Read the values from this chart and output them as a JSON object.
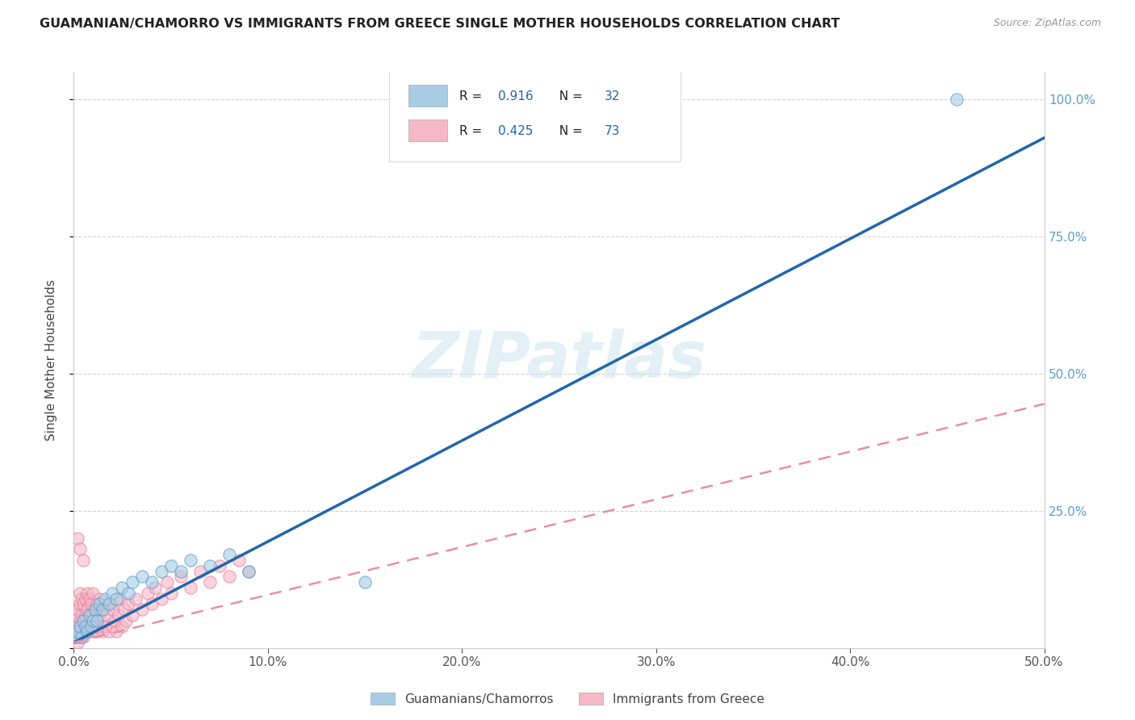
{
  "title": "GUAMANIAN/CHAMORRO VS IMMIGRANTS FROM GREECE SINGLE MOTHER HOUSEHOLDS CORRELATION CHART",
  "source": "Source: ZipAtlas.com",
  "ylabel": "Single Mother Households",
  "xlim": [
    0,
    0.5
  ],
  "ylim": [
    0,
    1.05
  ],
  "xticks": [
    0.0,
    0.1,
    0.2,
    0.3,
    0.4,
    0.5
  ],
  "xtick_labels": [
    "0.0%",
    "10.0%",
    "20.0%",
    "30.0%",
    "40.0%",
    "50.0%"
  ],
  "yticks": [
    0.0,
    0.25,
    0.5,
    0.75,
    1.0
  ],
  "ytick_labels": [
    "",
    "25.0%",
    "50.0%",
    "75.0%",
    "100.0%"
  ],
  "r1": "0.916",
  "n1": "32",
  "r2": "0.425",
  "n2": "73",
  "watermark": "ZIPatlas",
  "blue_color": "#a8cce4",
  "blue_edge_color": "#5b9ec9",
  "pink_color": "#f5b8c8",
  "pink_edge_color": "#e87ea0",
  "blue_line_color": "#2166ac",
  "pink_line_color": "#e8909e",
  "right_axis_color": "#5b9ec9",
  "background_color": "#ffffff",
  "grid_color": "#c8c8c8",
  "blue_scatter_x": [
    0.001,
    0.002,
    0.003,
    0.004,
    0.005,
    0.006,
    0.007,
    0.008,
    0.009,
    0.01,
    0.011,
    0.012,
    0.013,
    0.015,
    0.016,
    0.018,
    0.02,
    0.022,
    0.025,
    0.028,
    0.03,
    0.035,
    0.04,
    0.045,
    0.05,
    0.055,
    0.06,
    0.07,
    0.08,
    0.09,
    0.15,
    0.455
  ],
  "blue_scatter_y": [
    0.02,
    0.03,
    0.04,
    0.02,
    0.05,
    0.04,
    0.03,
    0.06,
    0.04,
    0.05,
    0.07,
    0.05,
    0.08,
    0.07,
    0.09,
    0.08,
    0.1,
    0.09,
    0.11,
    0.1,
    0.12,
    0.13,
    0.12,
    0.14,
    0.15,
    0.14,
    0.16,
    0.15,
    0.17,
    0.14,
    0.12,
    1.0
  ],
  "pink_scatter_x": [
    0.001,
    0.001,
    0.001,
    0.002,
    0.002,
    0.002,
    0.003,
    0.003,
    0.003,
    0.003,
    0.004,
    0.004,
    0.004,
    0.005,
    0.005,
    0.005,
    0.006,
    0.006,
    0.006,
    0.007,
    0.007,
    0.007,
    0.008,
    0.008,
    0.008,
    0.009,
    0.009,
    0.01,
    0.01,
    0.01,
    0.011,
    0.011,
    0.012,
    0.012,
    0.013,
    0.013,
    0.014,
    0.015,
    0.015,
    0.016,
    0.017,
    0.018,
    0.019,
    0.02,
    0.02,
    0.021,
    0.022,
    0.023,
    0.024,
    0.025,
    0.026,
    0.027,
    0.028,
    0.03,
    0.032,
    0.035,
    0.038,
    0.04,
    0.042,
    0.045,
    0.048,
    0.05,
    0.055,
    0.06,
    0.065,
    0.07,
    0.075,
    0.08,
    0.085,
    0.09,
    0.002,
    0.003,
    0.005
  ],
  "pink_scatter_y": [
    0.02,
    0.04,
    0.06,
    0.01,
    0.03,
    0.07,
    0.02,
    0.05,
    0.08,
    0.1,
    0.03,
    0.06,
    0.09,
    0.02,
    0.05,
    0.08,
    0.03,
    0.06,
    0.09,
    0.04,
    0.07,
    0.1,
    0.03,
    0.06,
    0.09,
    0.04,
    0.08,
    0.03,
    0.06,
    0.1,
    0.04,
    0.07,
    0.03,
    0.08,
    0.04,
    0.09,
    0.05,
    0.03,
    0.07,
    0.04,
    0.06,
    0.03,
    0.08,
    0.04,
    0.07,
    0.05,
    0.03,
    0.06,
    0.09,
    0.04,
    0.07,
    0.05,
    0.08,
    0.06,
    0.09,
    0.07,
    0.1,
    0.08,
    0.11,
    0.09,
    0.12,
    0.1,
    0.13,
    0.11,
    0.14,
    0.12,
    0.15,
    0.13,
    0.16,
    0.14,
    0.2,
    0.18,
    0.16
  ],
  "blue_trend_x": [
    0.0,
    0.5
  ],
  "blue_trend_y": [
    0.01,
    0.93
  ],
  "pink_trend_x": [
    0.0,
    0.5
  ],
  "pink_trend_y": [
    0.01,
    0.445
  ]
}
